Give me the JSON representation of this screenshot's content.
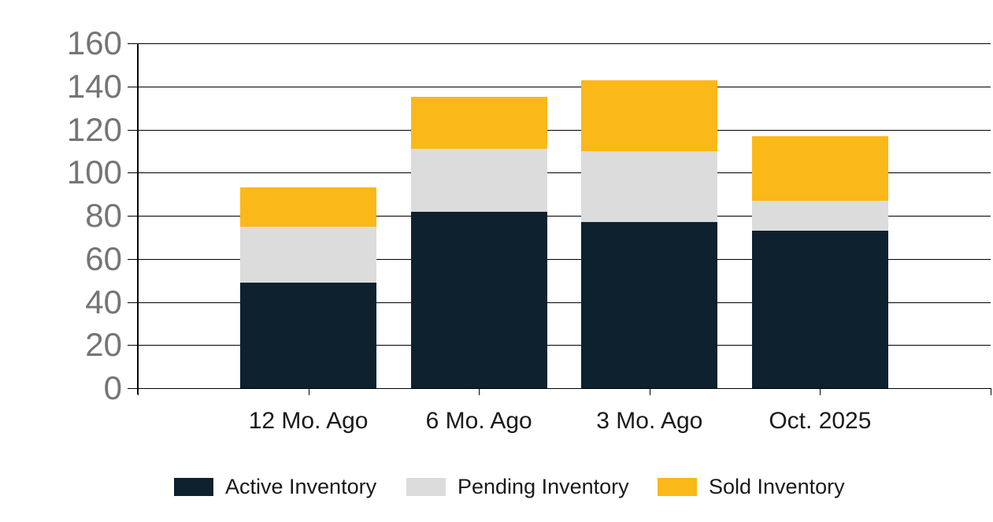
{
  "chart_data": {
    "type": "bar",
    "stacked": true,
    "title": "",
    "xlabel": "",
    "ylabel": "",
    "categories": [
      "12 Mo. Ago",
      "6 Mo. Ago",
      "3 Mo. Ago",
      "Oct. 2025"
    ],
    "series": [
      {
        "name": "Active Inventory",
        "color": "#0D212E",
        "values": [
          49,
          82,
          77,
          73
        ]
      },
      {
        "name": "Pending Inventory",
        "color": "#DCDCDC",
        "values": [
          26,
          29,
          33,
          14
        ]
      },
      {
        "name": "Sold Inventory",
        "color": "#FBB819",
        "values": [
          18,
          24,
          33,
          30
        ]
      }
    ],
    "stack_totals": [
      93,
      135,
      143,
      117
    ],
    "ylim": [
      0,
      160
    ],
    "ytick_step": 20,
    "ytick_labels": [
      "0",
      "20",
      "40",
      "60",
      "80",
      "100",
      "120",
      "140",
      "160"
    ],
    "grid": true,
    "legend_position": "bottom",
    "colors": {
      "y_axis_label": "#757575",
      "axis_text": "#1a1a1a",
      "gridline": "#000000",
      "background": "#ffffff"
    }
  }
}
